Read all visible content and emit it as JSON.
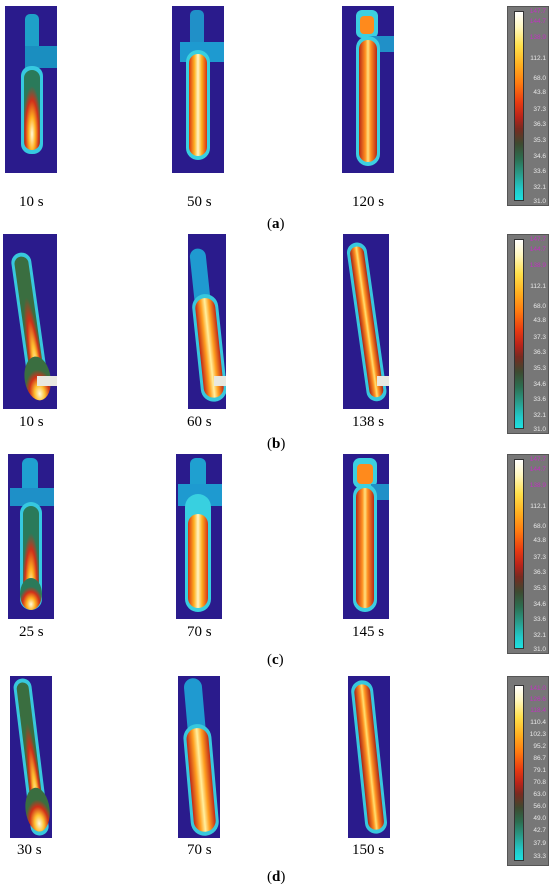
{
  "panels": [
    {
      "label": "a",
      "times": [
        "10 s",
        "50 s",
        "120 s"
      ],
      "scale_ticks": [
        "147.7",
        "144.7",
        "138.9",
        "112.1",
        "68.0",
        "43.8",
        "37.3",
        "36.3",
        "35.3",
        "34.6",
        "33.6",
        "32.1",
        "31.0"
      ]
    },
    {
      "label": "b",
      "times": [
        "10 s",
        "60 s",
        "138 s"
      ],
      "scale_ticks": [
        "147.7",
        "144.7",
        "138.9",
        "112.1",
        "68.0",
        "43.8",
        "37.3",
        "36.3",
        "35.3",
        "34.6",
        "33.6",
        "32.1",
        "31.0"
      ]
    },
    {
      "label": "c",
      "times": [
        "25 s",
        "70 s",
        "145 s"
      ],
      "scale_ticks": [
        "147.7",
        "144.7",
        "138.9",
        "112.1",
        "68.0",
        "43.8",
        "37.3",
        "36.3",
        "35.3",
        "34.6",
        "33.6",
        "32.1",
        "31.0"
      ]
    },
    {
      "label": "d",
      "times": [
        "30 s",
        "70 s",
        "150 s"
      ],
      "scale_ticks": [
        "141.0",
        "126.6",
        "118.4",
        "110.4",
        "102.3",
        "95.2",
        "86.7",
        "79.1",
        "70.8",
        "63.0",
        "56.0",
        "49.0",
        "42.7",
        "37.9",
        "33.3"
      ]
    }
  ],
  "colors": {
    "background_thermal": "#2a1b8c",
    "hot_core": "#fff6b0",
    "warm": "#ff9a1e",
    "edge": "#3ecfe0"
  }
}
